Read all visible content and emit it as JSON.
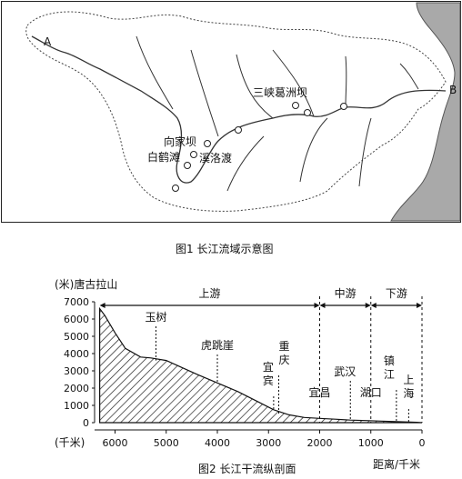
{
  "figure1": {
    "caption": "图1  长江流域示意图",
    "point_a": "A",
    "point_b": "B",
    "places": {
      "sanxia": "三峡葛洲坝",
      "xiangjiaba": "向家坝",
      "baihetan": "白鹤滩",
      "xiluodu": "溪洛渡"
    },
    "colors": {
      "sea": "#a9a9a9",
      "river": "#333333",
      "boundary": "#555555"
    }
  },
  "figure2": {
    "caption": "图2  长江干流纵剖面",
    "y_unit": "(米)",
    "x_unit": "(千米)",
    "source_label": "唐古拉山",
    "distance_label": "距离/千米",
    "y_ticks": [
      "7000",
      "6000",
      "5000",
      "4000",
      "3000",
      "2000",
      "1000",
      "0"
    ],
    "x_ticks": [
      "6000",
      "5000",
      "4000",
      "3000",
      "2000",
      "1000",
      "0"
    ],
    "sections": {
      "upper": "上游",
      "middle": "中游",
      "lower": "下游"
    },
    "sites": {
      "yushu": "玉树",
      "hutiaoxia": "虎跳崖",
      "chongqing": "重\n庆",
      "yibin": "宜\n宾",
      "yichang": "宜昌",
      "wuhan": "武汉",
      "hukou": "湖口",
      "zhenjiang": "镇\n江",
      "shanghai": "上\n海"
    }
  },
  "chart_data": {
    "type": "area",
    "x": [
      6300,
      6200,
      6000,
      5800,
      5500,
      5300,
      5000,
      4700,
      4400,
      4000,
      3600,
      3200,
      2900,
      2600,
      2300,
      2000,
      1700,
      1400,
      1100,
      800,
      500,
      300,
      100,
      0
    ],
    "y": [
      6600,
      6200,
      5200,
      4300,
      3800,
      3750,
      3600,
      3200,
      2800,
      2300,
      1800,
      1200,
      750,
      450,
      300,
      250,
      200,
      150,
      120,
      90,
      60,
      40,
      20,
      0
    ],
    "xlim": [
      6400,
      0
    ],
    "ylim": [
      0,
      7000
    ],
    "xlabel": "距离/千米",
    "ylabel": "(米)",
    "sections": [
      {
        "name": "上游",
        "from": 6300,
        "to": 2000
      },
      {
        "name": "中游",
        "from": 2000,
        "to": 1000
      },
      {
        "name": "下游",
        "from": 1000,
        "to": 0
      }
    ]
  }
}
